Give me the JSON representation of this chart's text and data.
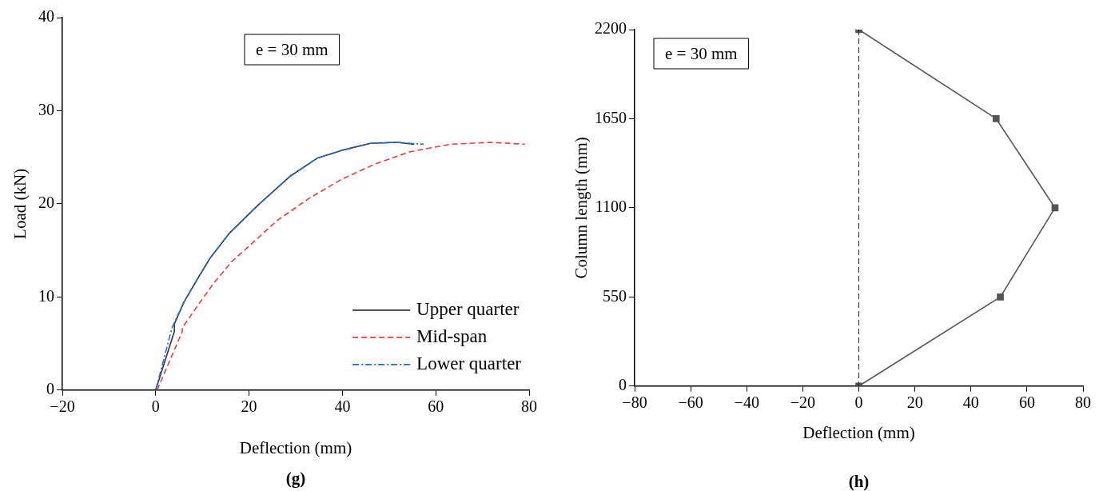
{
  "chart_data": [
    {
      "type": "line",
      "xlabel": "Deflection (mm)",
      "ylabel": "Load (kN)",
      "annotations": [
        "e = 30 mm",
        "(g)"
      ],
      "xlim": [
        -20,
        80
      ],
      "xticks": [
        {
          "value": -20,
          "label": "−20"
        },
        0,
        20,
        40,
        60,
        80
      ],
      "ylim": [
        0,
        40
      ],
      "yticks": [
        0,
        10,
        20,
        30,
        40
      ],
      "grid": false,
      "legend": "bottom right",
      "marker": "none",
      "series": [
        {
          "name": "Upper quarter",
          "color": "#333333",
          "line_style": "solid",
          "x": [
            0,
            4.0,
            4.0,
            6.0,
            8.9,
            11.7,
            15.7,
            22.0,
            28.9,
            34.6,
            40.3,
            46.0,
            51.7,
            55.4
          ],
          "values": [
            0,
            6.3,
            7.1,
            9.4,
            11.9,
            14.2,
            16.8,
            19.9,
            23.0,
            24.9,
            25.8,
            26.5,
            26.6,
            26.4
          ]
        },
        {
          "name": "Mid-span",
          "color": "#ef3b3b",
          "line_style": "dashed",
          "x": [
            0.3,
            5.7,
            5.7,
            8.9,
            12.3,
            16.3,
            21.4,
            26.0,
            32.9,
            39.7,
            47.1,
            54.5,
            63.1,
            71.7,
            79.1
          ],
          "values": [
            0,
            6.3,
            6.7,
            9.0,
            11.4,
            13.8,
            16.1,
            18.2,
            20.6,
            22.6,
            24.3,
            25.6,
            26.4,
            26.6,
            26.4
          ]
        },
        {
          "name": "Lower quarter",
          "color": "#1f6fe0",
          "line_style": "dotted",
          "x": [
            0,
            3.5,
            6.0,
            8.9,
            11.7,
            15.7,
            22.0,
            28.9,
            34.6,
            40.3,
            46.0,
            51.7,
            57.4
          ],
          "values": [
            0,
            6.7,
            9.4,
            11.9,
            14.2,
            16.8,
            19.9,
            23.0,
            24.9,
            25.8,
            26.5,
            26.6,
            26.4
          ]
        }
      ]
    },
    {
      "type": "line",
      "xlabel": "Deflection (mm)",
      "ylabel": "Column length (mm)",
      "annotations": [
        "e = 30 mm",
        "(h)"
      ],
      "xlim": [
        -80,
        80
      ],
      "xticks": [
        {
          "value": -80,
          "label": "−80"
        },
        {
          "value": -60,
          "label": "−60"
        },
        {
          "value": -40,
          "label": "−40"
        },
        {
          "value": -20,
          "label": "−20"
        },
        0,
        20,
        40,
        60,
        80
      ],
      "ylim": [
        0,
        2200
      ],
      "yticks": [
        0,
        550,
        1100,
        1650,
        2200
      ],
      "grid": false,
      "legend": false,
      "marker": "square",
      "ref_lines": [
        {
          "axis": "x",
          "value": 0,
          "color": "#222222",
          "line_style": "dashed"
        }
      ],
      "series": [
        {
          "color": "#555555",
          "line_style": "solid",
          "x": [
            0,
            50.5,
            70,
            49,
            0
          ],
          "values": [
            0,
            550,
            1100,
            1650,
            2200
          ]
        }
      ]
    }
  ]
}
